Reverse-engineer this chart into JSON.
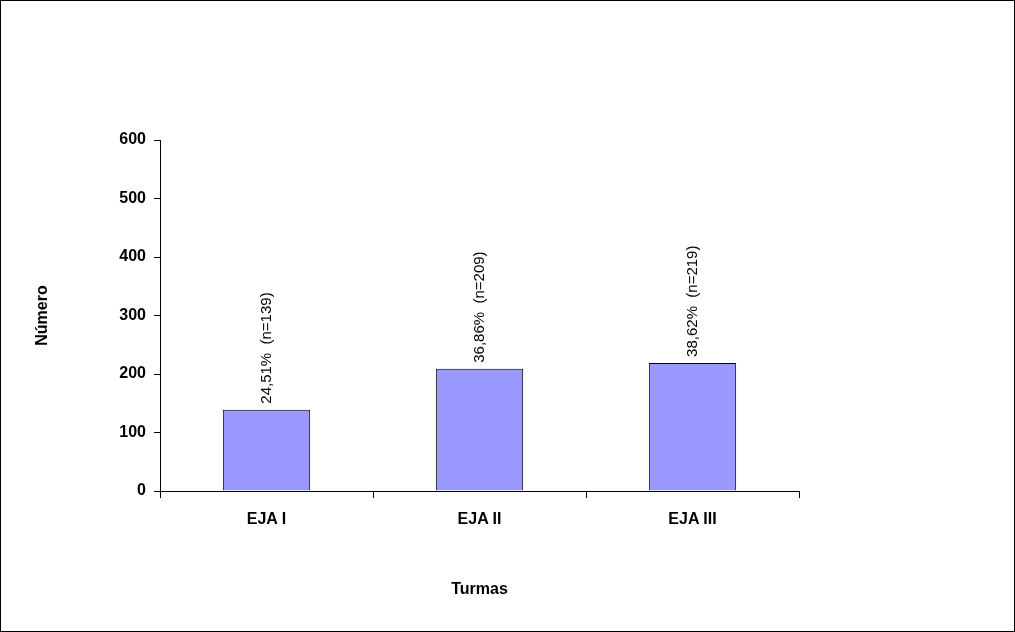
{
  "chart_data": {
    "type": "bar",
    "xlabel": "Turmas",
    "ylabel": "Número",
    "categories": [
      "EJA I",
      "EJA II",
      "EJA III"
    ],
    "values": [
      139,
      209,
      219
    ],
    "color": "#9999ff",
    "value_labels": [
      "24,51%  (n=139)",
      "36,86%  (n=209)",
      "38,62%  (n=219)"
    ],
    "ylim": [
      0,
      600
    ],
    "yticks": [
      0,
      100,
      200,
      300,
      400,
      500,
      600
    ],
    "grid": false,
    "legend": false
  }
}
